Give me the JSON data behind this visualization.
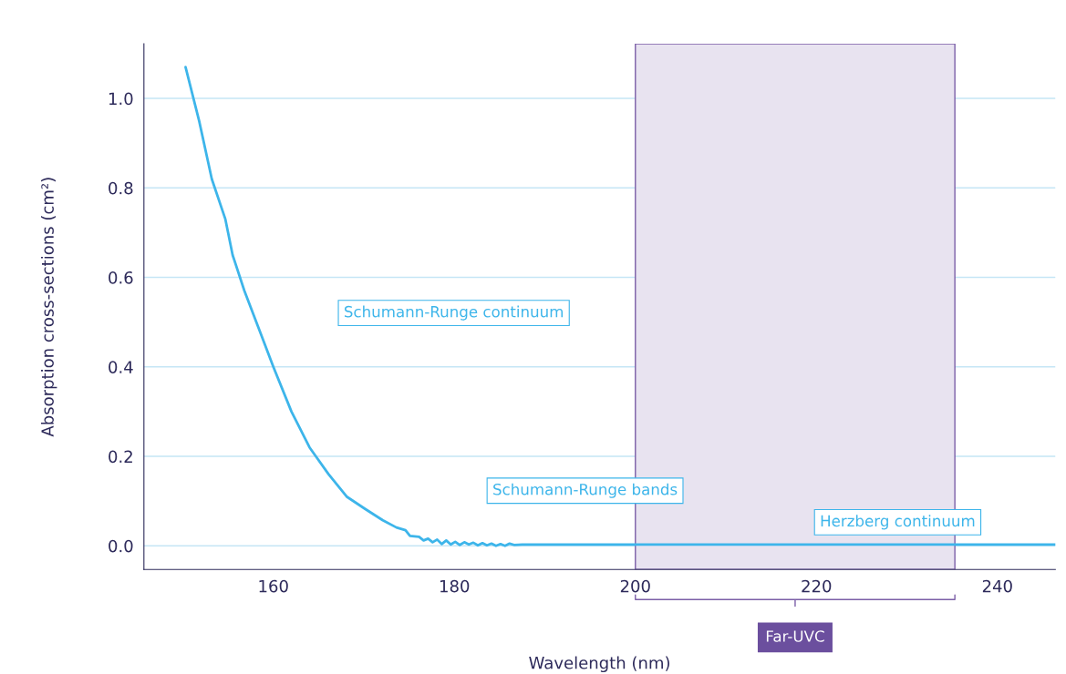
{
  "chart_data": {
    "type": "line",
    "xlabel": "Wavelength (nm)",
    "ylabel": "Absorption cross-sections (cm²)",
    "x": [
      150.3,
      151.8,
      153.2,
      154.7,
      155.5,
      156.8,
      158.5,
      160.0,
      162.0,
      164.0,
      166.1,
      168.1,
      170.1,
      172.1,
      173.6,
      174.6,
      175.1,
      176.1,
      176.6,
      177.1,
      177.6,
      178.1,
      178.6,
      179.1,
      179.6,
      180.1,
      180.6,
      181.1,
      181.6,
      182.1,
      182.6,
      183.1,
      183.6,
      184.1,
      184.6,
      185.1,
      185.6,
      186.1,
      186.6,
      187.5,
      190,
      200,
      220,
      246.4
    ],
    "series": [
      {
        "color": "#3db5ea",
        "values": [
          1.07,
          0.95,
          0.82,
          0.73,
          0.65,
          0.57,
          0.48,
          0.4,
          0.3,
          0.22,
          0.16,
          0.11,
          0.083,
          0.057,
          0.041,
          0.035,
          0.022,
          0.02,
          0.012,
          0.016,
          0.008,
          0.014,
          0.004,
          0.012,
          0.003,
          0.009,
          0.002,
          0.008,
          0.003,
          0.007,
          0.001,
          0.006,
          0.001,
          0.005,
          0.0,
          0.004,
          0.0,
          0.005,
          0.002,
          0.003,
          0.003,
          0.003,
          0.003,
          0.003
        ]
      }
    ],
    "xlim": [
      145.7,
      246.4
    ],
    "ylim": [
      -0.053,
      1.122
    ],
    "xticks": [
      160,
      180,
      200,
      220,
      240
    ],
    "yticks": [
      {
        "value": 0,
        "label": "0.0"
      },
      {
        "value": 0.2,
        "label": "0.2"
      },
      {
        "value": 0.4,
        "label": "0.4"
      },
      {
        "value": 0.6,
        "label": "0.6"
      },
      {
        "value": 0.8,
        "label": "0.8"
      },
      {
        "value": 1.0,
        "label": "1.0"
      }
    ],
    "grid": "y",
    "marker": "none",
    "line_style": "solid",
    "bands": [
      {
        "axis": "x",
        "from": 200,
        "to": 235.3,
        "label": "Far-UVC",
        "color": "#e8e3f0"
      }
    ],
    "annotations": [
      "Schumann-Runge continuum",
      "Schumann-Runge bands",
      "Herzberg continuum"
    ]
  }
}
